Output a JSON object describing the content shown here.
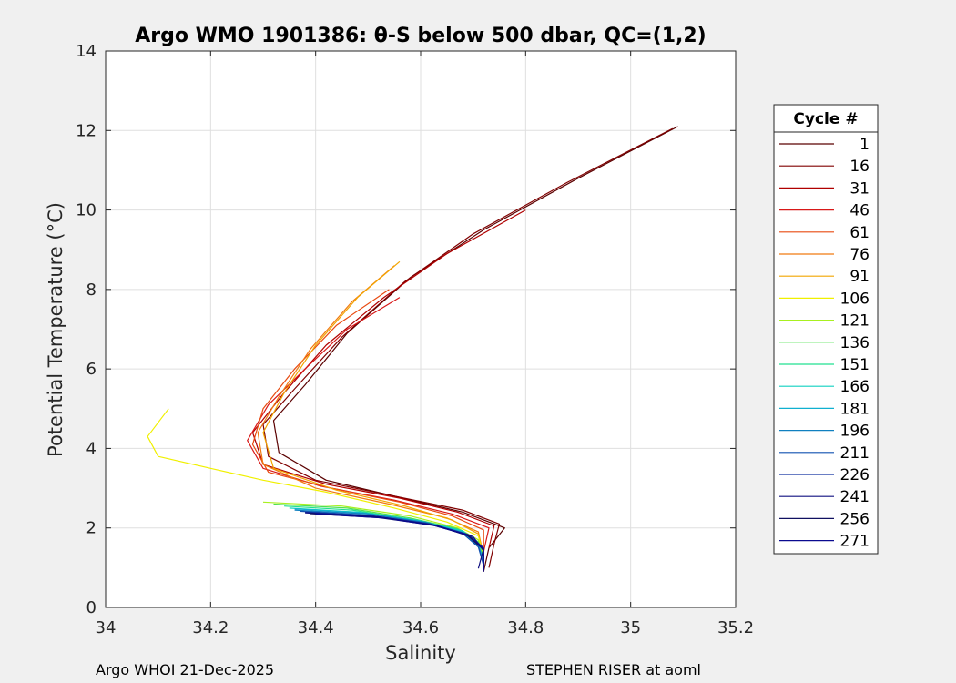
{
  "chart_data": {
    "type": "line",
    "title": "Argo WMO 1901386: θ-S below 500 dbar,  QC=(1,2)",
    "xlabel": "Salinity",
    "ylabel": "Potential Temperature (°C)",
    "xlim": [
      34,
      35.2
    ],
    "ylim": [
      0,
      14
    ],
    "xticks": [
      "34",
      "34.2",
      "34.4",
      "34.6",
      "34.8",
      "35",
      "35.2"
    ],
    "yticks": [
      "0",
      "2",
      "4",
      "6",
      "8",
      "10",
      "12",
      "14"
    ],
    "grid": true,
    "legend": {
      "title": "Cycle #",
      "placement": "outside-right",
      "entries": [
        {
          "label": "1",
          "color": "#5a0000"
        },
        {
          "label": "16",
          "color": "#800000"
        },
        {
          "label": "31",
          "color": "#b00000"
        },
        {
          "label": "46",
          "color": "#d81818"
        },
        {
          "label": "61",
          "color": "#e84a10"
        },
        {
          "label": "76",
          "color": "#f07a10"
        },
        {
          "label": "91",
          "color": "#f2a500"
        },
        {
          "label": "106",
          "color": "#f0f000"
        },
        {
          "label": "121",
          "color": "#a8f020"
        },
        {
          "label": "136",
          "color": "#50e050"
        },
        {
          "label": "151",
          "color": "#20e090"
        },
        {
          "label": "166",
          "color": "#10d0c0"
        },
        {
          "label": "181",
          "color": "#10b0d0"
        },
        {
          "label": "196",
          "color": "#1080c0"
        },
        {
          "label": "211",
          "color": "#1050b0"
        },
        {
          "label": "226",
          "color": "#1030a0"
        },
        {
          "label": "241",
          "color": "#101080"
        },
        {
          "label": "256",
          "color": "#101060"
        },
        {
          "label": "271",
          "color": "#0a0a90"
        }
      ]
    },
    "series": [
      {
        "name": "1",
        "color": "#5a0000",
        "points": [
          [
            35.09,
            12.1
          ],
          [
            34.9,
            10.8
          ],
          [
            34.72,
            9.5
          ],
          [
            34.58,
            8.3
          ],
          [
            34.46,
            6.9
          ],
          [
            34.38,
            5.6
          ],
          [
            34.32,
            4.7
          ],
          [
            34.33,
            3.9
          ],
          [
            34.42,
            3.2
          ],
          [
            34.55,
            2.8
          ],
          [
            34.68,
            2.4
          ],
          [
            34.76,
            2.0
          ],
          [
            34.73,
            1.5
          ],
          [
            34.72,
            0.9
          ]
        ]
      },
      {
        "name": "16",
        "color": "#800000",
        "points": [
          [
            35.08,
            12.05
          ],
          [
            34.88,
            10.7
          ],
          [
            34.7,
            9.4
          ],
          [
            34.57,
            8.2
          ],
          [
            34.45,
            6.8
          ],
          [
            34.36,
            5.5
          ],
          [
            34.3,
            4.6
          ],
          [
            34.31,
            3.8
          ],
          [
            34.4,
            3.2
          ],
          [
            34.55,
            2.8
          ],
          [
            34.68,
            2.45
          ],
          [
            34.75,
            2.1
          ],
          [
            34.74,
            1.6
          ],
          [
            34.73,
            1.0
          ]
        ]
      },
      {
        "name": "31",
        "color": "#b00000",
        "points": [
          [
            34.8,
            10.0
          ],
          [
            34.65,
            8.9
          ],
          [
            34.53,
            7.8
          ],
          [
            34.42,
            6.6
          ],
          [
            34.34,
            5.4
          ],
          [
            34.28,
            4.4
          ],
          [
            34.3,
            3.6
          ],
          [
            34.42,
            3.1
          ],
          [
            34.56,
            2.75
          ],
          [
            34.67,
            2.4
          ],
          [
            34.74,
            2.05
          ],
          [
            34.73,
            1.5
          ]
        ]
      },
      {
        "name": "46",
        "color": "#d81818",
        "points": [
          [
            34.56,
            7.8
          ],
          [
            34.46,
            7.0
          ],
          [
            34.38,
            6.0
          ],
          [
            34.31,
            5.1
          ],
          [
            34.27,
            4.2
          ],
          [
            34.3,
            3.5
          ],
          [
            34.41,
            3.05
          ],
          [
            34.55,
            2.7
          ],
          [
            34.66,
            2.35
          ],
          [
            34.73,
            2.0
          ],
          [
            34.72,
            1.4
          ]
        ]
      },
      {
        "name": "61",
        "color": "#e84a10",
        "points": [
          [
            34.54,
            8.0
          ],
          [
            34.44,
            7.1
          ],
          [
            34.36,
            6.0
          ],
          [
            34.3,
            5.0
          ],
          [
            34.28,
            4.1
          ],
          [
            34.31,
            3.4
          ],
          [
            34.43,
            3.0
          ],
          [
            34.56,
            2.65
          ],
          [
            34.66,
            2.3
          ],
          [
            34.72,
            1.95
          ],
          [
            34.72,
            1.4
          ]
        ]
      },
      {
        "name": "76",
        "color": "#f07a10",
        "points": [
          [
            34.55,
            8.6
          ],
          [
            34.47,
            7.7
          ],
          [
            34.39,
            6.5
          ],
          [
            34.33,
            5.3
          ],
          [
            34.29,
            4.4
          ],
          [
            34.3,
            3.6
          ],
          [
            34.4,
            3.0
          ],
          [
            34.54,
            2.6
          ],
          [
            34.65,
            2.25
          ],
          [
            34.71,
            1.9
          ],
          [
            34.72,
            1.3
          ]
        ]
      },
      {
        "name": "91",
        "color": "#f2a500",
        "points": [
          [
            34.56,
            8.7
          ],
          [
            34.48,
            7.8
          ],
          [
            34.4,
            6.6
          ],
          [
            34.34,
            5.4
          ],
          [
            34.3,
            4.4
          ],
          [
            34.32,
            3.5
          ],
          [
            34.44,
            2.95
          ],
          [
            34.57,
            2.55
          ],
          [
            34.66,
            2.2
          ],
          [
            34.71,
            1.85
          ],
          [
            34.72,
            1.3
          ]
        ]
      },
      {
        "name": "106",
        "color": "#f0f000",
        "points": [
          [
            34.12,
            5.0
          ],
          [
            34.08,
            4.3
          ],
          [
            34.1,
            3.8
          ],
          [
            34.2,
            3.5
          ],
          [
            34.3,
            3.2
          ],
          [
            34.42,
            2.9
          ],
          [
            34.55,
            2.5
          ],
          [
            34.65,
            2.15
          ],
          [
            34.71,
            1.8
          ],
          [
            34.72,
            1.25
          ]
        ]
      },
      {
        "name": "121",
        "color": "#a8f020",
        "points": [
          [
            34.3,
            2.65
          ],
          [
            34.45,
            2.55
          ],
          [
            34.58,
            2.3
          ],
          [
            34.67,
            2.0
          ],
          [
            34.71,
            1.7
          ],
          [
            34.72,
            1.25
          ]
        ]
      },
      {
        "name": "136",
        "color": "#50e050",
        "points": [
          [
            34.32,
            2.6
          ],
          [
            34.46,
            2.5
          ],
          [
            34.58,
            2.25
          ],
          [
            34.67,
            1.98
          ],
          [
            34.71,
            1.65
          ],
          [
            34.72,
            1.2
          ]
        ]
      },
      {
        "name": "151",
        "color": "#20e090",
        "points": [
          [
            34.34,
            2.55
          ],
          [
            34.47,
            2.45
          ],
          [
            34.59,
            2.2
          ],
          [
            34.67,
            1.95
          ],
          [
            34.71,
            1.62
          ],
          [
            34.72,
            1.18
          ]
        ]
      },
      {
        "name": "166",
        "color": "#10d0c0",
        "points": [
          [
            34.35,
            2.5
          ],
          [
            34.48,
            2.4
          ],
          [
            34.6,
            2.18
          ],
          [
            34.68,
            1.93
          ],
          [
            34.71,
            1.6
          ],
          [
            34.72,
            1.15
          ]
        ]
      },
      {
        "name": "181",
        "color": "#10b0d0",
        "points": [
          [
            34.36,
            2.48
          ],
          [
            34.49,
            2.38
          ],
          [
            34.6,
            2.16
          ],
          [
            34.68,
            1.9
          ],
          [
            34.71,
            1.58
          ],
          [
            34.72,
            1.12
          ]
        ]
      },
      {
        "name": "196",
        "color": "#1080c0",
        "points": [
          [
            34.36,
            2.45
          ],
          [
            34.5,
            2.35
          ],
          [
            34.61,
            2.14
          ],
          [
            34.68,
            1.88
          ],
          [
            34.71,
            1.55
          ],
          [
            34.72,
            1.1
          ]
        ]
      },
      {
        "name": "211",
        "color": "#1050b0",
        "points": [
          [
            34.37,
            2.42
          ],
          [
            34.5,
            2.32
          ],
          [
            34.61,
            2.12
          ],
          [
            34.68,
            1.86
          ],
          [
            34.71,
            1.52
          ],
          [
            34.72,
            1.05
          ]
        ]
      },
      {
        "name": "226",
        "color": "#1030a0",
        "points": [
          [
            34.38,
            2.4
          ],
          [
            34.51,
            2.3
          ],
          [
            34.62,
            2.1
          ],
          [
            34.69,
            1.84
          ],
          [
            34.72,
            1.5
          ],
          [
            34.72,
            1.0
          ]
        ]
      },
      {
        "name": "241",
        "color": "#101080",
        "points": [
          [
            34.38,
            2.38
          ],
          [
            34.52,
            2.28
          ],
          [
            34.62,
            2.08
          ],
          [
            34.69,
            1.82
          ],
          [
            34.72,
            1.48
          ],
          [
            34.71,
            0.98
          ]
        ]
      },
      {
        "name": "256",
        "color": "#101060",
        "points": [
          [
            34.39,
            2.36
          ],
          [
            34.52,
            2.26
          ],
          [
            34.63,
            2.06
          ],
          [
            34.69,
            1.8
          ],
          [
            34.72,
            1.45
          ],
          [
            34.72,
            0.95
          ]
        ]
      },
      {
        "name": "271",
        "color": "#0a0a90",
        "points": [
          [
            34.4,
            2.35
          ],
          [
            34.53,
            2.25
          ],
          [
            34.63,
            2.05
          ],
          [
            34.7,
            1.78
          ],
          [
            34.72,
            1.42
          ],
          [
            34.72,
            0.9
          ]
        ]
      }
    ]
  },
  "footer": {
    "left": "Argo WHOI 21-Dec-2025",
    "right": "STEPHEN RISER at aoml"
  }
}
